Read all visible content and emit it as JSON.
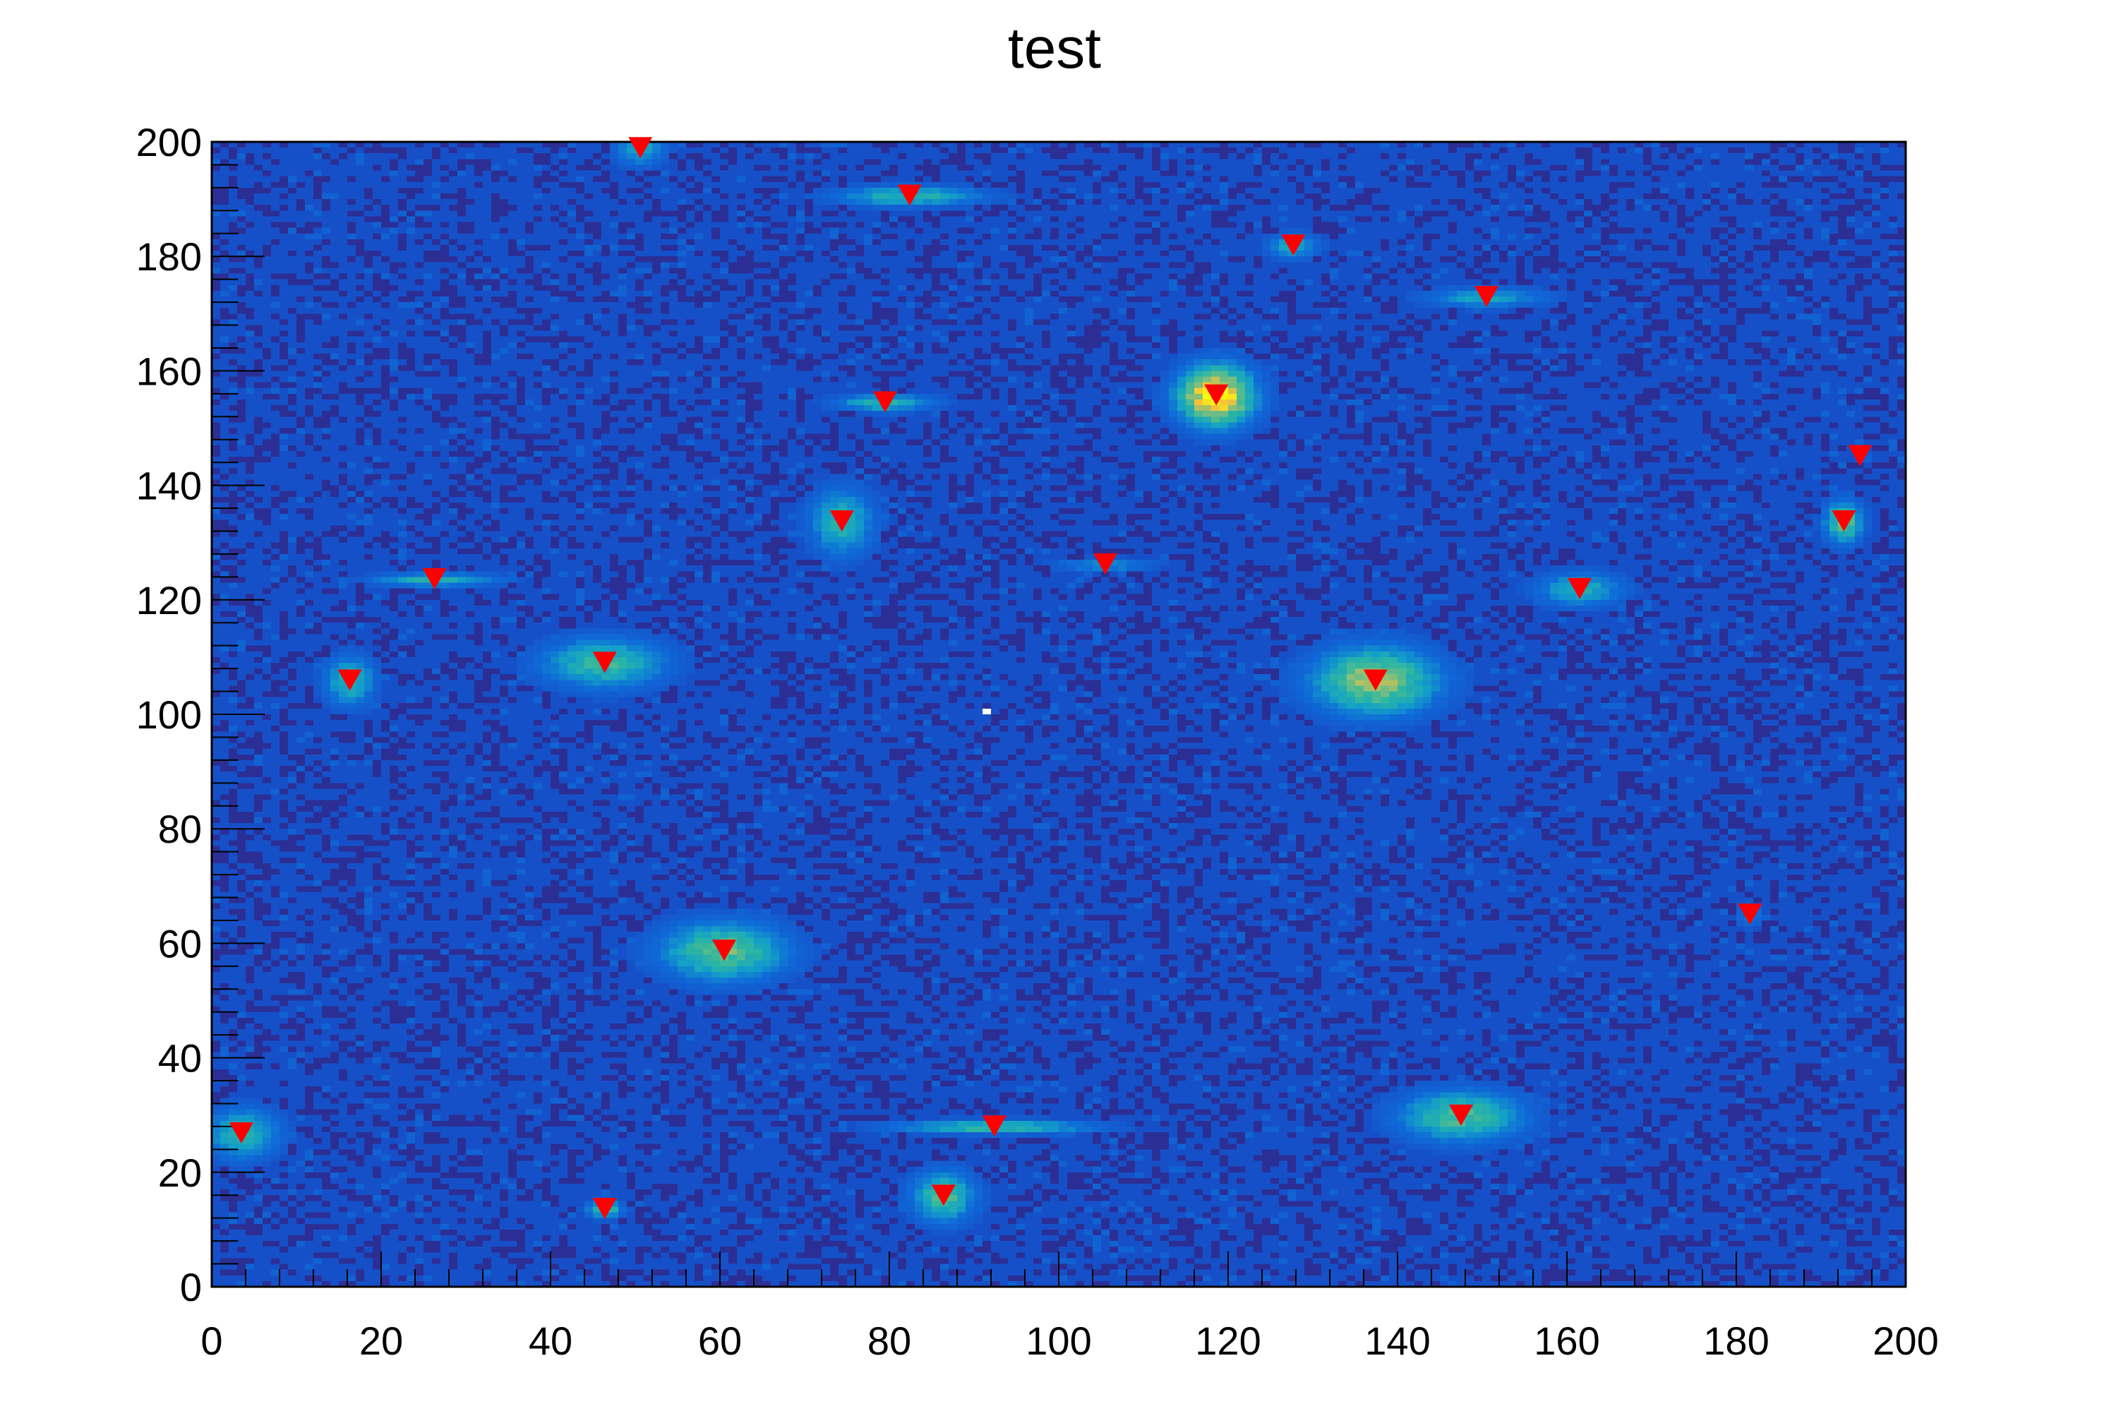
{
  "chart_data": {
    "type": "heatmap",
    "title": "test",
    "xlabel": "",
    "ylabel": "",
    "xlim": [
      0,
      200
    ],
    "ylim": [
      0,
      200
    ],
    "bins": [
      200,
      200
    ],
    "palette": [
      "#2b2f95",
      "#1650c8",
      "#0f6ad8",
      "#13a0c8",
      "#2eb7a0",
      "#8cbf78",
      "#f5c23a",
      "#f9fb0e"
    ],
    "marker_color": "#ff0000",
    "x_ticks": [
      "0",
      "20",
      "40",
      "60",
      "80",
      "100",
      "120",
      "140",
      "160",
      "180",
      "200"
    ],
    "y_ticks": [
      "0",
      "20",
      "40",
      "60",
      "80",
      "100",
      "120",
      "140",
      "160",
      "180",
      "200"
    ],
    "empty_bins": [
      [
        91,
        100
      ]
    ],
    "peaks": [
      {
        "x": 50.6,
        "y": 198.8,
        "sx": 2,
        "sy": 2,
        "amp": 0.4
      },
      {
        "x": 82.4,
        "y": 190.5,
        "sx": 6,
        "sy": 1.2,
        "amp": 0.45
      },
      {
        "x": 127.7,
        "y": 181.8,
        "sx": 2,
        "sy": 1.5,
        "amp": 0.4
      },
      {
        "x": 150.5,
        "y": 172.8,
        "sx": 5,
        "sy": 1.2,
        "amp": 0.35
      },
      {
        "x": 79.5,
        "y": 154.4,
        "sx": 4,
        "sy": 1,
        "amp": 0.45
      },
      {
        "x": 118.6,
        "y": 155.6,
        "sx": 3,
        "sy": 3.5,
        "amp": 1.0
      },
      {
        "x": 194.6,
        "y": 145.0,
        "sx": 1,
        "sy": 1,
        "amp": 0.1
      },
      {
        "x": 74.4,
        "y": 133.6,
        "sx": 2.5,
        "sy": 4,
        "amp": 0.45
      },
      {
        "x": 192.7,
        "y": 133.6,
        "sx": 1.5,
        "sy": 2.5,
        "amp": 0.6
      },
      {
        "x": 105.5,
        "y": 126.1,
        "sx": 4,
        "sy": 0.8,
        "amp": 0.3
      },
      {
        "x": 26.3,
        "y": 123.5,
        "sx": 5,
        "sy": 0.8,
        "amp": 0.45
      },
      {
        "x": 161.5,
        "y": 121.8,
        "sx": 3.5,
        "sy": 2,
        "amp": 0.4
      },
      {
        "x": 46.4,
        "y": 108.9,
        "sx": 5,
        "sy": 3,
        "amp": 0.5
      },
      {
        "x": 16.3,
        "y": 105.8,
        "sx": 2,
        "sy": 3,
        "amp": 0.45
      },
      {
        "x": 137.4,
        "y": 105.8,
        "sx": 5,
        "sy": 4,
        "amp": 0.7
      },
      {
        "x": 60.5,
        "y": 58.6,
        "sx": 5,
        "sy": 3.5,
        "amp": 0.6
      },
      {
        "x": 181.6,
        "y": 64.9,
        "sx": 1,
        "sy": 1.5,
        "amp": 0.25
      },
      {
        "x": 3.5,
        "y": 26.7,
        "sx": 3,
        "sy": 3,
        "amp": 0.45
      },
      {
        "x": 92.4,
        "y": 27.9,
        "sx": 8,
        "sy": 0.8,
        "amp": 0.5
      },
      {
        "x": 147.5,
        "y": 29.8,
        "sx": 5,
        "sy": 3,
        "amp": 0.55
      },
      {
        "x": 46.4,
        "y": 13.5,
        "sx": 1.5,
        "sy": 1,
        "amp": 0.5
      },
      {
        "x": 86.4,
        "y": 15.8,
        "sx": 2.5,
        "sy": 3,
        "amp": 0.55
      }
    ]
  }
}
